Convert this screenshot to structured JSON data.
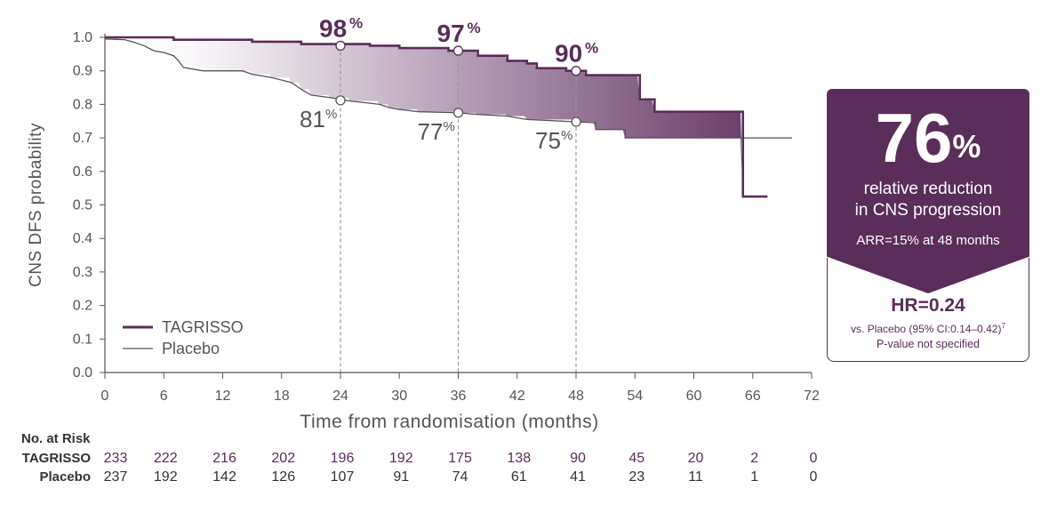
{
  "chart_data": {
    "type": "line",
    "ylabel": "CNS DFS probability",
    "xlabel": "Time from randomisation (months)",
    "xlim": [
      0,
      72
    ],
    "ylim": [
      0.0,
      1.0
    ],
    "x_ticks": [
      0,
      6,
      12,
      18,
      24,
      30,
      36,
      42,
      48,
      54,
      60,
      66,
      72
    ],
    "y_ticks": [
      "0.0",
      "0.1",
      "0.2",
      "0.3",
      "0.4",
      "0.5",
      "0.6",
      "0.7",
      "0.8",
      "0.9",
      "1.0"
    ],
    "legend_position": "bottom-left",
    "series": [
      {
        "name": "TAGRISSO",
        "color": "#5a2d5a",
        "points": [
          [
            0,
            1.0
          ],
          [
            7,
            1.0
          ],
          [
            7,
            0.993
          ],
          [
            15,
            0.993
          ],
          [
            15,
            0.987
          ],
          [
            20,
            0.987
          ],
          [
            20,
            0.98
          ],
          [
            27,
            0.98
          ],
          [
            27,
            0.975
          ],
          [
            30,
            0.975
          ],
          [
            30,
            0.968
          ],
          [
            35,
            0.968
          ],
          [
            35,
            0.96
          ],
          [
            38,
            0.96
          ],
          [
            38,
            0.945
          ],
          [
            41,
            0.945
          ],
          [
            41,
            0.93
          ],
          [
            43,
            0.93
          ],
          [
            43,
            0.922
          ],
          [
            44,
            0.922
          ],
          [
            44,
            0.908
          ],
          [
            47,
            0.908
          ],
          [
            47,
            0.9
          ],
          [
            49,
            0.9
          ],
          [
            49,
            0.887
          ],
          [
            54.5,
            0.887
          ],
          [
            54.5,
            0.815
          ],
          [
            56,
            0.815
          ],
          [
            56,
            0.778
          ],
          [
            65,
            0.778
          ],
          [
            65,
            0.525
          ],
          [
            67.5,
            0.525
          ]
        ]
      },
      {
        "name": "Placebo",
        "color": "#555555",
        "points": [
          [
            0,
            0.995
          ],
          [
            2,
            0.993
          ],
          [
            3,
            0.985
          ],
          [
            4,
            0.975
          ],
          [
            5,
            0.96
          ],
          [
            6,
            0.955
          ],
          [
            7,
            0.945
          ],
          [
            7.5,
            0.93
          ],
          [
            8,
            0.91
          ],
          [
            10,
            0.9
          ],
          [
            14,
            0.9
          ],
          [
            15,
            0.89
          ],
          [
            17,
            0.88
          ],
          [
            19,
            0.865
          ],
          [
            20,
            0.845
          ],
          [
            21,
            0.828
          ],
          [
            23,
            0.82
          ],
          [
            25,
            0.81
          ],
          [
            28,
            0.8
          ],
          [
            29,
            0.79
          ],
          [
            30,
            0.785
          ],
          [
            32,
            0.778
          ],
          [
            36,
            0.775
          ],
          [
            38,
            0.77
          ],
          [
            41,
            0.765
          ],
          [
            43,
            0.755
          ],
          [
            48,
            0.748
          ],
          [
            50,
            0.745
          ],
          [
            50,
            0.725
          ],
          [
            53,
            0.725
          ],
          [
            53,
            0.7
          ],
          [
            70,
            0.7
          ]
        ]
      }
    ],
    "markers": [
      {
        "series": "TAGRISSO",
        "x": 24,
        "y": 0.975,
        "value": "98",
        "unit": "%"
      },
      {
        "series": "TAGRISSO",
        "x": 36,
        "y": 0.96,
        "value": "97",
        "unit": "%"
      },
      {
        "series": "TAGRISSO",
        "x": 48,
        "y": 0.9,
        "value": "90",
        "unit": "%"
      },
      {
        "series": "Placebo",
        "x": 24,
        "y": 0.812,
        "value": "81",
        "unit": "%"
      },
      {
        "series": "Placebo",
        "x": 36,
        "y": 0.775,
        "value": "77",
        "unit": "%"
      },
      {
        "series": "Placebo",
        "x": 48,
        "y": 0.748,
        "value": "75",
        "unit": "%"
      }
    ],
    "risk_table": {
      "header": "No. at Risk",
      "times": [
        0,
        6,
        12,
        18,
        24,
        30,
        36,
        42,
        48,
        54,
        60,
        66,
        72
      ],
      "rows": [
        {
          "label": "TAGRISSO",
          "values": [
            233,
            222,
            216,
            202,
            196,
            192,
            175,
            138,
            90,
            45,
            20,
            2,
            0
          ]
        },
        {
          "label": "Placebo",
          "values": [
            237,
            192,
            142,
            126,
            107,
            91,
            74,
            61,
            41,
            23,
            11,
            1,
            0
          ]
        }
      ]
    }
  },
  "callout": {
    "headline_value": "76",
    "headline_unit": "%",
    "line1": "relative reduction",
    "line2": "in CNS progression",
    "arr": "ARR=15% at 48 months",
    "hr": "HR=0.24",
    "vs": "vs. Placebo (95% CI:0.14–0.42)",
    "vs_ref": "7",
    "pvalue": "P-value not specified"
  },
  "colors": {
    "tagrisso": "#5a2d5a",
    "placebo": "#555555",
    "shade_dark": "#5a2d5a",
    "shade_light": "#ffffff"
  }
}
